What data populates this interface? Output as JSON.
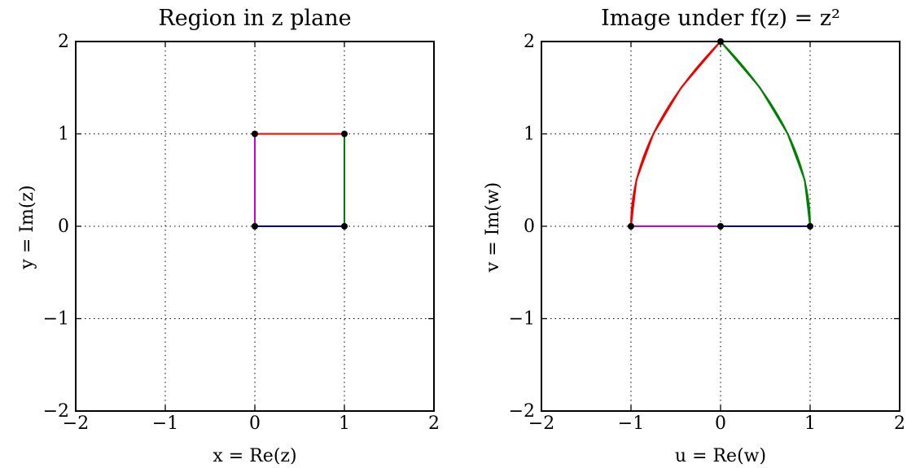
{
  "chart_data": [
    {
      "type": "line",
      "title": "Region in z plane",
      "xlabel": "x = Re(z)",
      "ylabel": "y = Im(z)",
      "xlim": [
        -2,
        2
      ],
      "ylim": [
        -2,
        2
      ],
      "xticks": [
        -2,
        -1,
        0,
        1,
        2
      ],
      "yticks": [
        -2,
        -1,
        0,
        1,
        2
      ],
      "xtick_labels": [
        "−2",
        "−1",
        "0",
        "1",
        "2"
      ],
      "ytick_labels": [
        "−2",
        "−1",
        "0",
        "1",
        "2"
      ],
      "grid": true,
      "series": [
        {
          "color": "#0000cc",
          "x": [
            0,
            1
          ],
          "y": [
            0,
            0
          ]
        },
        {
          "color": "#008000",
          "x": [
            1,
            1
          ],
          "y": [
            0,
            1
          ]
        },
        {
          "color": "#ee0000",
          "x": [
            1,
            0
          ],
          "y": [
            1,
            1
          ]
        },
        {
          "color": "#cc00cc",
          "x": [
            0,
            0
          ],
          "y": [
            1,
            0
          ]
        }
      ],
      "points": {
        "x": [
          0,
          1,
          1,
          0
        ],
        "y": [
          0,
          0,
          1,
          1
        ]
      }
    },
    {
      "type": "line",
      "title": "Image under f(z) = z²",
      "xlabel": "u = Re(w)",
      "ylabel": "v = Im(w)",
      "xlim": [
        -2,
        2
      ],
      "ylim": [
        -2,
        2
      ],
      "xticks": [
        -2,
        -1,
        0,
        1,
        2
      ],
      "yticks": [
        -2,
        -1,
        0,
        1,
        2
      ],
      "xtick_labels": [
        "−2",
        "−1",
        "0",
        "1",
        "2"
      ],
      "ytick_labels": [
        "−2",
        "−1",
        "0",
        "1",
        "2"
      ],
      "grid": true,
      "series": [
        {
          "color": "#0000cc",
          "x": [
            0,
            0.25,
            0.5,
            0.75,
            1
          ],
          "y": [
            0,
            0,
            0,
            0,
            0
          ]
        },
        {
          "color": "#008000",
          "x": [
            1,
            0.94,
            0.75,
            0.44,
            0
          ],
          "y": [
            0,
            0.5,
            1,
            1.5,
            2
          ]
        },
        {
          "color": "#ee0000",
          "x": [
            0,
            -0.44,
            -0.75,
            -0.94,
            -1
          ],
          "y": [
            2,
            1.5,
            1,
            0.5,
            0
          ]
        },
        {
          "color": "#cc00cc",
          "x": [
            -1,
            -0.75,
            -0.5,
            -0.25,
            0
          ],
          "y": [
            0,
            0,
            0,
            0,
            0
          ]
        }
      ],
      "points": {
        "x": [
          0,
          1,
          0,
          -1
        ],
        "y": [
          0,
          0,
          2,
          0
        ]
      }
    }
  ]
}
